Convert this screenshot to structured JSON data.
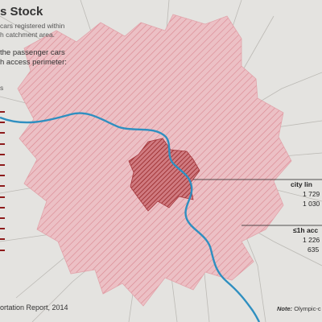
{
  "title": "s Stock",
  "subtitle_lines": [
    "cars registered within",
    "h catchment area."
  ],
  "question_lines": [
    "the passenger cars",
    "h access perimeter:"
  ],
  "left_small": "s",
  "city_label": "city  lin",
  "city_values": [
    "1 729",
    "1 030"
  ],
  "access_label": "≤1h acc",
  "access_values": [
    "1 226",
    "635"
  ],
  "source": "ortation Report, 2014",
  "note_label": "Note:",
  "note_text": "Olympic-c",
  "colors": {
    "background": "#e4e3e0",
    "access_area": "#eab7bd",
    "access_hatch": "#d9868f",
    "city_area": "#c9555d",
    "city_hatch": "#8e1b1b",
    "river": "#2f8fc0",
    "roads": "#b9b7b3",
    "tick": "#8e1b1b"
  },
  "left_tick_count": 14
}
